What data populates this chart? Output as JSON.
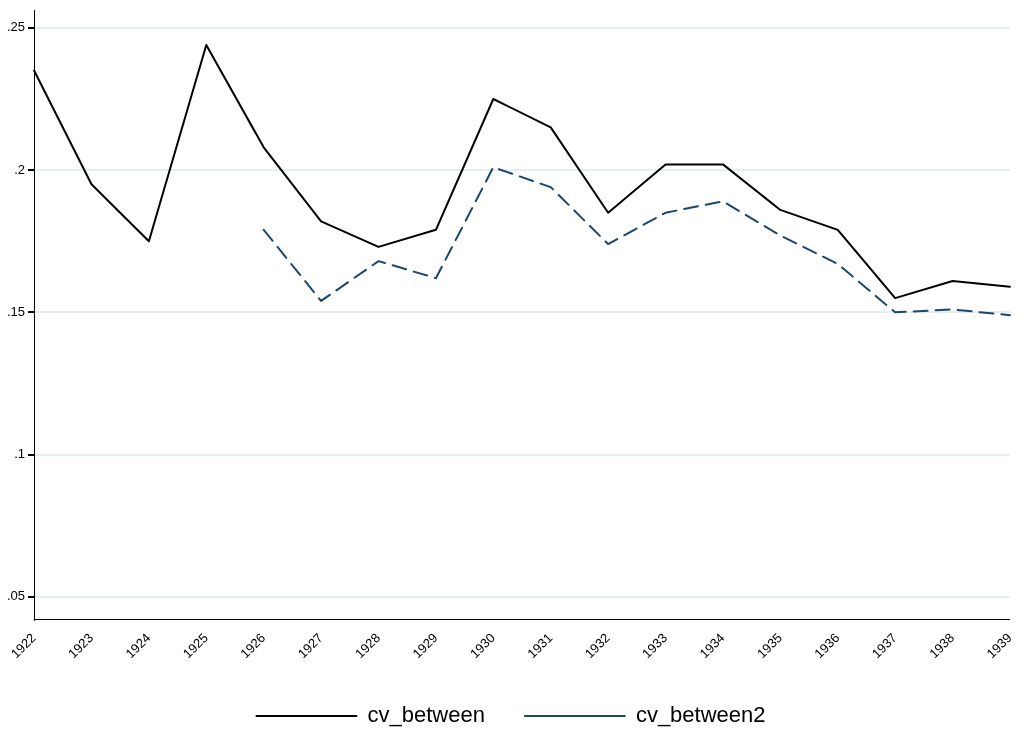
{
  "chart_data": {
    "type": "line",
    "categories": [
      "1922",
      "1923",
      "1924",
      "1925",
      "1926",
      "1927",
      "1928",
      "1929",
      "1930",
      "1931",
      "1932",
      "1933",
      "1934",
      "1935",
      "1936",
      "1937",
      "1938",
      "1939"
    ],
    "series": [
      {
        "name": "cv_between",
        "color": "#000000",
        "line_style": "solid",
        "values": [
          0.235,
          0.195,
          0.175,
          0.244,
          0.208,
          0.182,
          0.173,
          0.179,
          0.225,
          0.215,
          0.185,
          0.202,
          0.202,
          0.186,
          0.179,
          0.155,
          0.161,
          0.159
        ]
      },
      {
        "name": "cv_between2",
        "color": "#1a476f",
        "line_style": "dashed",
        "values": [
          null,
          null,
          null,
          null,
          0.179,
          0.154,
          0.168,
          0.162,
          0.201,
          0.194,
          0.174,
          0.185,
          0.189,
          0.177,
          0.167,
          0.15,
          0.151,
          0.149
        ]
      }
    ],
    "ylim": [
      0.042,
      0.256
    ],
    "yticks": [
      {
        "value": 0.05,
        "label": ".05"
      },
      {
        "value": 0.1,
        "label": ".1"
      },
      {
        "value": 0.15,
        "label": ".15"
      },
      {
        "value": 0.2,
        "label": ".2"
      },
      {
        "value": 0.25,
        "label": ".25"
      }
    ],
    "grid": "y",
    "legend": "bottom",
    "marker": "none"
  }
}
